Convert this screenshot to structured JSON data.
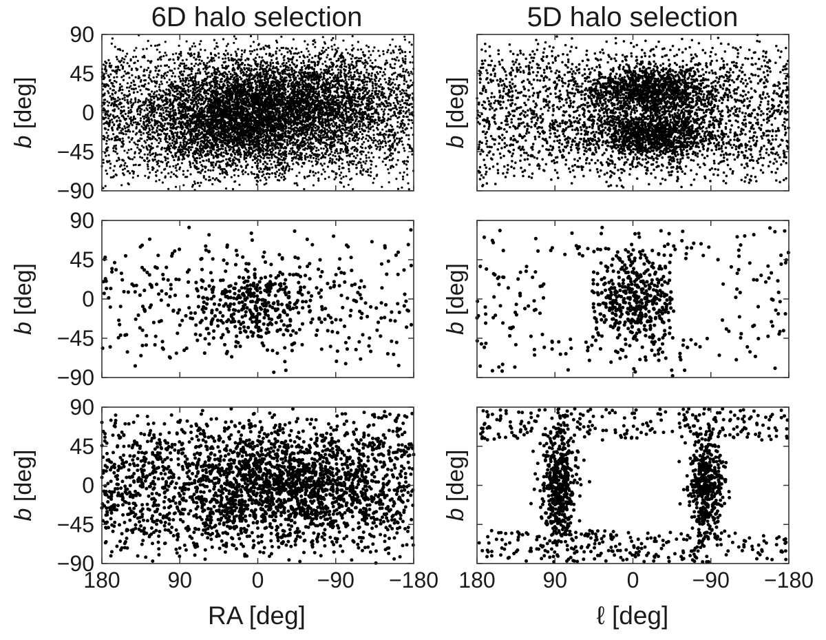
{
  "figure": {
    "columns": [
      {
        "title": "6D halo selection",
        "xlabel": "RA [deg]"
      },
      {
        "title": "5D halo selection",
        "xlabel": "ℓ [deg]"
      }
    ],
    "ylabel_var": "b",
    "ylabel_unit": " [deg]",
    "x_tick_labels": [
      "180",
      "90",
      "0",
      "−90",
      "−180"
    ],
    "y_tick_labels": [
      "90",
      "45",
      "0",
      "−45",
      "−90"
    ]
  },
  "chart_data": [
    {
      "type": "scatter",
      "row": 1,
      "column": 1,
      "xlabel": "RA [deg]",
      "ylabel": "b [deg]",
      "xlim": [
        180,
        -180
      ],
      "ylim": [
        -90,
        90
      ],
      "x_inverted": true,
      "xticks": [
        180,
        90,
        0,
        -90,
        -180
      ],
      "yticks": [
        90,
        45,
        0,
        -45,
        -90
      ],
      "grid": false,
      "y_tick_labels_shown": true,
      "x_tick_labels_shown": false,
      "point_count": 9000,
      "distribution": "dense everywhere, most concentrated near RA 0 to 60 and b -45 to 45"
    },
    {
      "type": "scatter",
      "row": 1,
      "column": 2,
      "xlabel": "ℓ [deg]",
      "ylabel": "b [deg]",
      "xlim": [
        180,
        -180
      ],
      "ylim": [
        -90,
        90
      ],
      "x_inverted": true,
      "xticks": [
        180,
        90,
        0,
        -90,
        -180
      ],
      "yticks": [
        90,
        45,
        0,
        -45,
        -90
      ],
      "grid": false,
      "y_tick_labels_shown": false,
      "x_tick_labels_shown": false,
      "point_count": 5000,
      "distribution": "dense, concentrated near l 0 to -60 at b ±10 to ±45, sparser near the plane at l ~ 90"
    },
    {
      "type": "scatter",
      "row": 2,
      "column": 1,
      "xlabel": "RA [deg]",
      "ylabel": "b [deg]",
      "xlim": [
        180,
        -180
      ],
      "ylim": [
        -90,
        90
      ],
      "x_inverted": true,
      "xticks": [
        180,
        90,
        0,
        -90,
        -180
      ],
      "yticks": [
        90,
        45,
        0,
        -45,
        -90
      ],
      "grid": false,
      "y_tick_labels_shown": true,
      "x_tick_labels_shown": false,
      "point_count": 650,
      "distribution": "sparse, mild clustering near RA 0, b -20 to 20"
    },
    {
      "type": "scatter",
      "row": 2,
      "column": 2,
      "xlabel": "ℓ [deg]",
      "ylabel": "b [deg]",
      "xlim": [
        180,
        -180
      ],
      "ylim": [
        -90,
        90
      ],
      "x_inverted": true,
      "xticks": [
        180,
        90,
        0,
        -90,
        -180
      ],
      "yticks": [
        90,
        45,
        0,
        -45,
        -90
      ],
      "grid": false,
      "y_tick_labels_shown": false,
      "x_tick_labels_shown": false,
      "point_count": 650,
      "distribution": "concentrated in l -50 to 50; empty zones around l ~ 75 and l ~ -75 at low latitude"
    },
    {
      "type": "scatter",
      "row": 3,
      "column": 1,
      "xlabel": "RA [deg]",
      "ylabel": "b [deg]",
      "xlim": [
        180,
        -180
      ],
      "ylim": [
        -90,
        90
      ],
      "x_inverted": true,
      "xticks": [
        180,
        90,
        0,
        -90,
        -180
      ],
      "yticks": [
        90,
        45,
        0,
        -45,
        -90
      ],
      "grid": false,
      "y_tick_labels_shown": true,
      "x_tick_labels_shown": true,
      "point_count": 2800,
      "distribution": "fairly uniform, denser band near RA 0 to -60 and b -45 to 45"
    },
    {
      "type": "scatter",
      "row": 3,
      "column": 2,
      "xlabel": "ℓ [deg]",
      "ylabel": "b [deg]",
      "xlim": [
        180,
        -180
      ],
      "ylim": [
        -90,
        90
      ],
      "x_inverted": true,
      "xticks": [
        180,
        90,
        0,
        -90,
        -180
      ],
      "yticks": [
        90,
        45,
        0,
        -45,
        -90
      ],
      "grid": false,
      "y_tick_labels_shown": false,
      "x_tick_labels_shown": true,
      "point_count": 1400,
      "distribution": "two vertical bands at l ~ 85 and l ~ -85, plus scattered points at |b| > 50"
    }
  ]
}
